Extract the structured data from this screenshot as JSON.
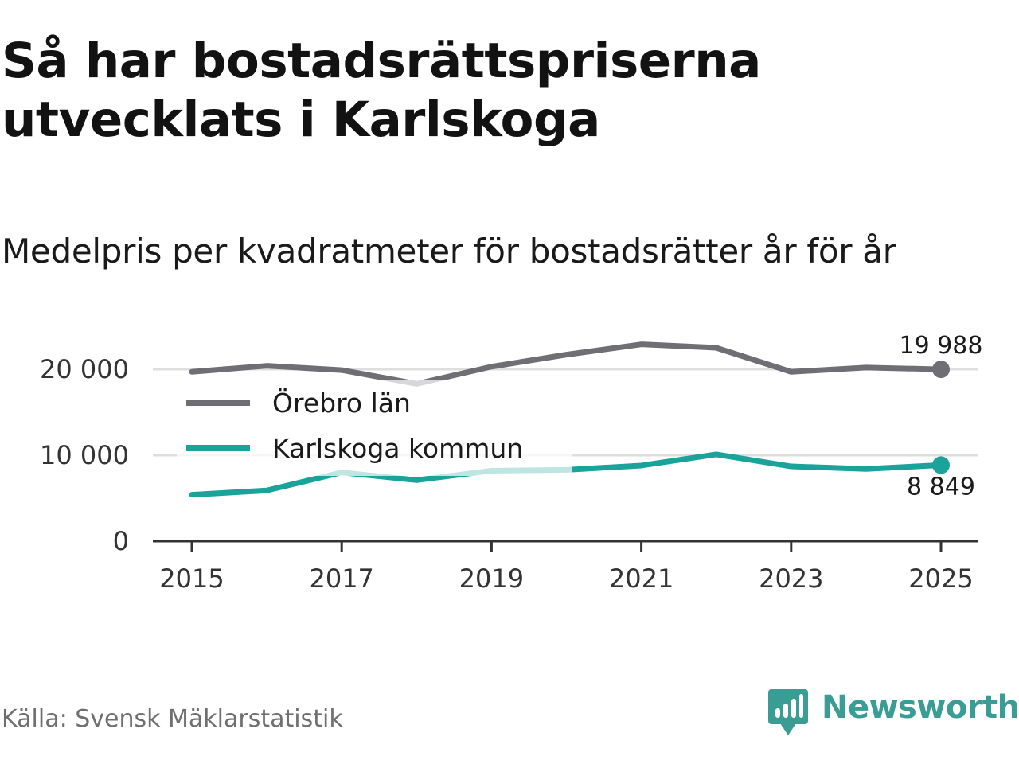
{
  "title": "Så har bostadsrättspriserna utvecklats i Karlskoga",
  "subtitle": "Medelpris per kvadratmeter för bostadsrätter år för år",
  "source": "Källa: Svensk Mäklarstatistik",
  "brand": {
    "name": "Newsworthy",
    "color": "#3a9d95",
    "icon": "newsworthy-logo-icon"
  },
  "chart_data": {
    "type": "line",
    "title": "Medelpris per kvadratmeter för bostadsrätter år för år",
    "xlabel": "",
    "ylabel": "",
    "x": [
      2015,
      2016,
      2017,
      2018,
      2019,
      2020,
      2021,
      2022,
      2023,
      2024,
      2025
    ],
    "ylim": [
      0,
      20000
    ],
    "yticks": [
      0,
      10000,
      20000
    ],
    "ytick_labels": [
      "0",
      "10 000",
      "20 000"
    ],
    "xticks": [
      2015,
      2017,
      2019,
      2021,
      2023,
      2025
    ],
    "xtick_labels": [
      "2015",
      "2017",
      "2019",
      "2021",
      "2023",
      "2025"
    ],
    "grid": true,
    "legend_position": "top-left",
    "series": [
      {
        "name": "Örebro län",
        "color": "#6f6e75",
        "values": [
          19700,
          20400,
          19900,
          18300,
          20300,
          21700,
          22900,
          22500,
          19700,
          20200,
          19988
        ],
        "end_label": "19 988"
      },
      {
        "name": "Karlskoga kommun",
        "color": "#1aa39a",
        "values": [
          5400,
          5900,
          8000,
          7100,
          8200,
          8300,
          8800,
          10100,
          8700,
          8400,
          8849
        ],
        "end_label": "8 849"
      }
    ]
  }
}
